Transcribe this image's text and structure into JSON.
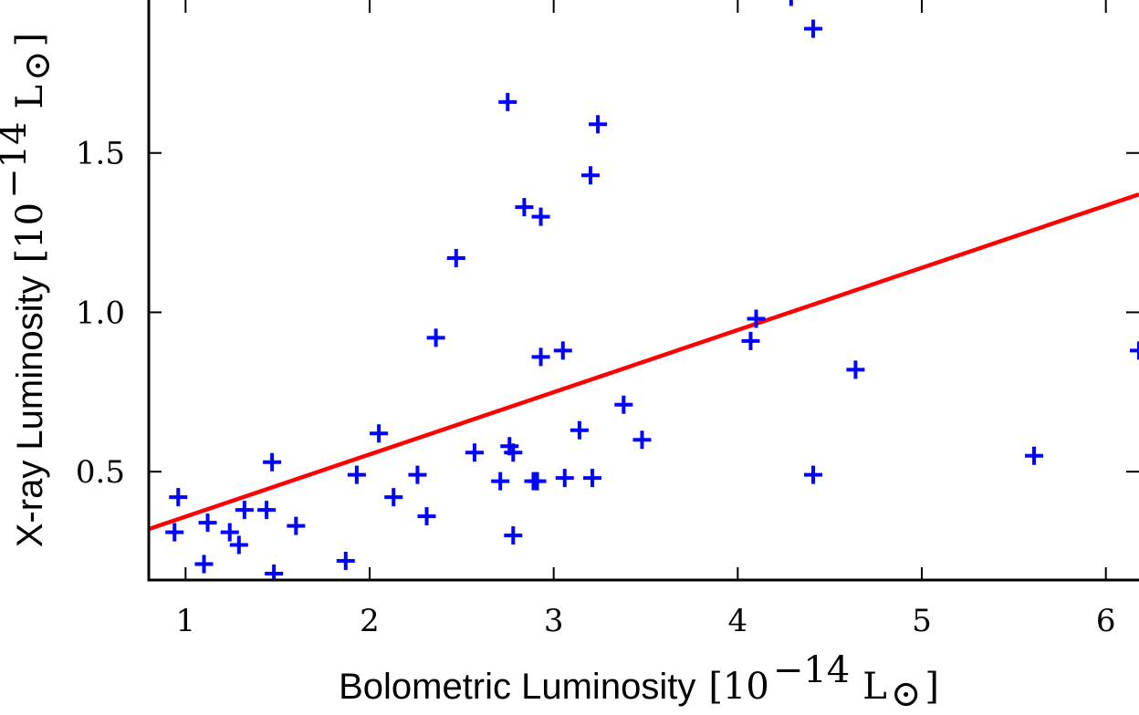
{
  "chart_data": {
    "type": "scatter",
    "title": "",
    "xlabel": {
      "text": "Bolometric Luminosity",
      "unit_prefix": "[10",
      "unit_exponent": "−14",
      "unit_symbol": "L",
      "unit_subscript": "⊙",
      "unit_suffix": "]"
    },
    "ylabel": {
      "text": "X-ray Luminosity",
      "unit_prefix": "[10",
      "unit_exponent": "−14",
      "unit_symbol": "L",
      "unit_subscript": "⊙",
      "unit_suffix": "]"
    },
    "xlim": [
      0.8,
      6.18
    ],
    "ylim": [
      0.16,
      1.98
    ],
    "xticks": [
      1,
      2,
      3,
      4,
      5,
      6
    ],
    "xtick_labels": [
      "1",
      "2",
      "3",
      "4",
      "5",
      "6"
    ],
    "yticks": [
      0.5,
      1.0,
      1.5
    ],
    "ytick_labels": [
      "0.5",
      "1.0",
      "1.5"
    ],
    "grid": false,
    "marker": "+",
    "points_color": "#0000ff",
    "fit_color": "#ff0000",
    "points": [
      {
        "x": 0.94,
        "y": 0.31
      },
      {
        "x": 0.96,
        "y": 0.42
      },
      {
        "x": 1.1,
        "y": 0.21
      },
      {
        "x": 1.12,
        "y": 0.34
      },
      {
        "x": 1.24,
        "y": 0.31
      },
      {
        "x": 1.29,
        "y": 0.27
      },
      {
        "x": 1.32,
        "y": 0.38
      },
      {
        "x": 1.44,
        "y": 0.38
      },
      {
        "x": 1.47,
        "y": 0.53
      },
      {
        "x": 1.48,
        "y": 0.18
      },
      {
        "x": 1.6,
        "y": 0.33
      },
      {
        "x": 1.87,
        "y": 0.22
      },
      {
        "x": 1.93,
        "y": 0.49
      },
      {
        "x": 2.05,
        "y": 0.62
      },
      {
        "x": 2.13,
        "y": 0.42
      },
      {
        "x": 2.26,
        "y": 0.49
      },
      {
        "x": 2.31,
        "y": 0.36
      },
      {
        "x": 2.36,
        "y": 0.92
      },
      {
        "x": 2.47,
        "y": 1.17
      },
      {
        "x": 2.57,
        "y": 0.56
      },
      {
        "x": 2.71,
        "y": 0.47
      },
      {
        "x": 2.75,
        "y": 1.66
      },
      {
        "x": 2.76,
        "y": 0.58
      },
      {
        "x": 2.78,
        "y": 0.56
      },
      {
        "x": 2.78,
        "y": 0.3
      },
      {
        "x": 2.84,
        "y": 1.33
      },
      {
        "x": 2.89,
        "y": 0.47
      },
      {
        "x": 2.91,
        "y": 0.47
      },
      {
        "x": 2.93,
        "y": 1.3
      },
      {
        "x": 2.93,
        "y": 0.86
      },
      {
        "x": 3.05,
        "y": 0.88
      },
      {
        "x": 3.06,
        "y": 0.48
      },
      {
        "x": 3.14,
        "y": 0.63
      },
      {
        "x": 3.2,
        "y": 1.43
      },
      {
        "x": 3.21,
        "y": 0.48
      },
      {
        "x": 3.24,
        "y": 1.59
      },
      {
        "x": 3.38,
        "y": 0.71
      },
      {
        "x": 3.48,
        "y": 0.6
      },
      {
        "x": 4.07,
        "y": 0.91
      },
      {
        "x": 4.1,
        "y": 0.98
      },
      {
        "x": 4.29,
        "y": 1.99
      },
      {
        "x": 4.41,
        "y": 1.89
      },
      {
        "x": 4.41,
        "y": 0.49
      },
      {
        "x": 4.64,
        "y": 0.82
      },
      {
        "x": 5.61,
        "y": 0.55
      },
      {
        "x": 6.18,
        "y": 0.88
      }
    ],
    "fit_line": {
      "x": [
        0.8,
        6.18
      ],
      "y": [
        0.32,
        1.37
      ]
    }
  }
}
